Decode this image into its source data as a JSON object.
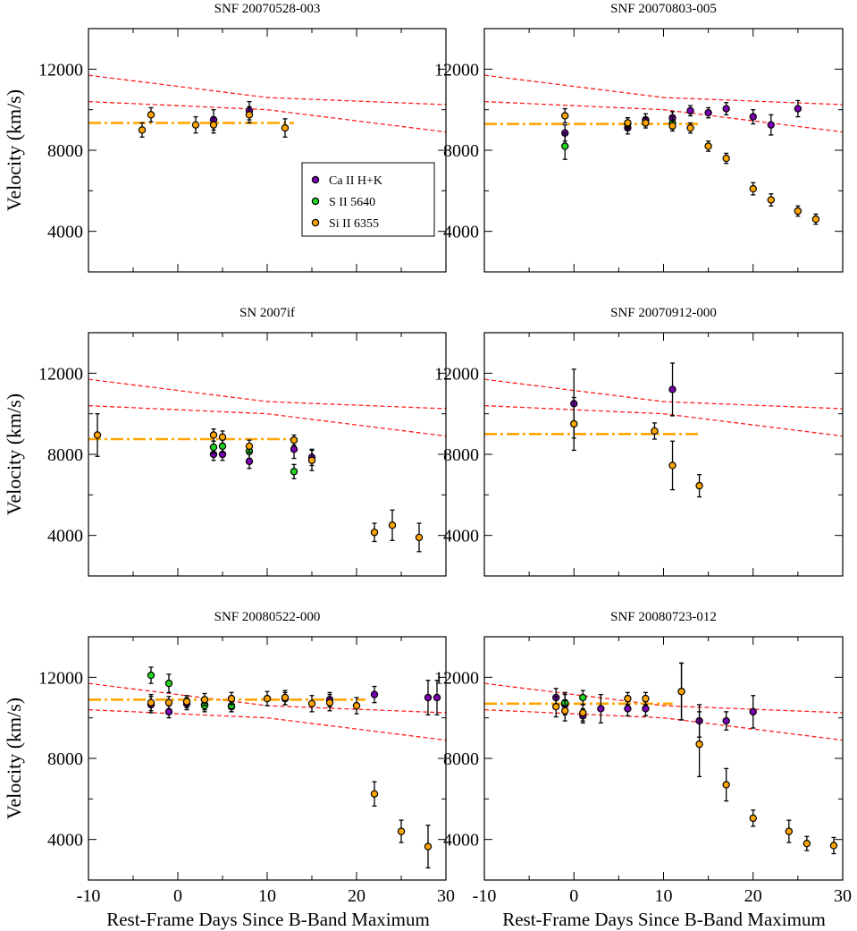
{
  "figure": {
    "xlabel": "Rest-Frame Days Since B-Band Maximum",
    "ylabel": "Velocity (km/s)",
    "xlim": [
      -10,
      30
    ],
    "ylim": [
      2000,
      14000
    ],
    "xticks": [
      -10,
      0,
      10,
      20,
      30
    ],
    "yticks": [
      4000,
      8000,
      12000
    ],
    "colors": {
      "ca": "#7b00b4",
      "s": "#22d422",
      "si": "#ffa500",
      "template": "#ff2020",
      "mean": "#ffa500"
    }
  },
  "legend": {
    "placement": "top-right of first panel",
    "entries": [
      {
        "key": "ca",
        "label": "Ca II H+K"
      },
      {
        "key": "s",
        "label": "S II 5640"
      },
      {
        "key": "si",
        "label": "Si II 6355"
      }
    ]
  },
  "template_lines": [
    {
      "name": "upper",
      "points": [
        [
          -10,
          11700
        ],
        [
          10,
          10600
        ],
        [
          30,
          10250
        ]
      ]
    },
    {
      "name": "lower",
      "points": [
        [
          -10,
          10400
        ],
        [
          10,
          10000
        ],
        [
          30,
          8900
        ]
      ]
    }
  ],
  "chart_data": [
    {
      "type": "scatter",
      "title": "SNF 20070528-003",
      "mean_velocity": {
        "value": 9350,
        "x_range": [
          -10,
          13
        ]
      },
      "series": [
        {
          "name": "Ca II H+K",
          "key": "ca",
          "points": [
            [
              4,
              9500,
              500
            ],
            [
              8,
              9950,
              450
            ]
          ]
        },
        {
          "name": "S II 5640",
          "key": "s",
          "points": []
        },
        {
          "name": "Si II 6355",
          "key": "si",
          "points": [
            [
              -4,
              9000,
              350
            ],
            [
              -3,
              9750,
              350
            ],
            [
              2,
              9250,
              400
            ],
            [
              4,
              9250,
              400
            ],
            [
              8,
              9750,
              400
            ],
            [
              12,
              9100,
              450
            ]
          ]
        }
      ]
    },
    {
      "type": "scatter",
      "title": "SNF 20070803-005",
      "mean_velocity": {
        "value": 9300,
        "x_range": [
          -10,
          14
        ]
      },
      "series": [
        {
          "name": "Ca II H+K",
          "key": "ca",
          "points": [
            [
              -1,
              8850,
              400
            ],
            [
              6,
              9100,
              300
            ],
            [
              8,
              9500,
              300
            ],
            [
              11,
              9600,
              300
            ],
            [
              13,
              9950,
              250
            ],
            [
              15,
              9850,
              250
            ],
            [
              17,
              10050,
              300
            ],
            [
              20,
              9650,
              350
            ],
            [
              22,
              9250,
              500
            ],
            [
              25,
              10050,
              400
            ]
          ]
        },
        {
          "name": "S II 5640",
          "key": "s",
          "points": [
            [
              -1,
              8200,
              650
            ],
            [
              6,
              9300,
              300
            ],
            [
              11,
              9350,
              300
            ]
          ]
        },
        {
          "name": "Si II 6355",
          "key": "si",
          "points": [
            [
              -1,
              9700,
              350
            ],
            [
              6,
              9350,
              250
            ],
            [
              8,
              9350,
              250
            ],
            [
              11,
              9200,
              250
            ],
            [
              13,
              9100,
              250
            ],
            [
              15,
              8200,
              250
            ],
            [
              17,
              7600,
              250
            ],
            [
              20,
              6100,
              300
            ],
            [
              22,
              5550,
              300
            ],
            [
              25,
              5000,
              250
            ],
            [
              27,
              4600,
              250
            ]
          ]
        }
      ]
    },
    {
      "type": "scatter",
      "title": "SN 2007if",
      "mean_velocity": {
        "value": 8750,
        "x_range": [
          -10,
          13
        ]
      },
      "series": [
        {
          "name": "Ca II H+K",
          "key": "ca",
          "points": [
            [
              4,
              8000,
              300
            ],
            [
              5,
              8000,
              300
            ],
            [
              8,
              7650,
              350
            ],
            [
              13,
              8250,
              450
            ],
            [
              15,
              7850,
              400
            ]
          ]
        },
        {
          "name": "S II 5640",
          "key": "s",
          "points": [
            [
              4,
              8350,
              300
            ],
            [
              5,
              8400,
              300
            ],
            [
              8,
              8150,
              350
            ],
            [
              13,
              7150,
              350
            ]
          ]
        },
        {
          "name": "Si II 6355",
          "key": "si",
          "points": [
            [
              -9,
              8950,
              1050
            ],
            [
              4,
              8950,
              300
            ],
            [
              5,
              8850,
              300
            ],
            [
              8,
              8400,
              300
            ],
            [
              13,
              8700,
              250
            ],
            [
              15,
              7700,
              500
            ],
            [
              22,
              4150,
              450
            ],
            [
              24,
              4500,
              750
            ],
            [
              27,
              3900,
              700
            ]
          ]
        }
      ]
    },
    {
      "type": "scatter",
      "title": "SNF 20070912-000",
      "mean_velocity": {
        "value": 9000,
        "x_range": [
          -10,
          14
        ]
      },
      "series": [
        {
          "name": "Ca II H+K",
          "key": "ca",
          "points": [
            [
              0,
              10500,
              1700
            ],
            [
              11,
              11200,
              1300
            ]
          ]
        },
        {
          "name": "S II 5640",
          "key": "s",
          "points": []
        },
        {
          "name": "Si II 6355",
          "key": "si",
          "points": [
            [
              0,
              9500,
              1300
            ],
            [
              9,
              9150,
              400
            ],
            [
              11,
              7450,
              1200
            ],
            [
              14,
              6450,
              550
            ]
          ]
        }
      ]
    },
    {
      "type": "scatter",
      "title": "SNF 20080522-000",
      "mean_velocity": {
        "value": 10900,
        "x_range": [
          -10,
          21
        ]
      },
      "series": [
        {
          "name": "Ca II H+K",
          "key": "ca",
          "points": [
            [
              -3,
              10650,
              400
            ],
            [
              -1,
              10300,
              300
            ],
            [
              1,
              10700,
              300
            ],
            [
              3,
              10650,
              250
            ],
            [
              6,
              10550,
              250
            ],
            [
              12,
              10950,
              300
            ],
            [
              17,
              10900,
              350
            ],
            [
              22,
              11150,
              400
            ],
            [
              28,
              11000,
              850
            ],
            [
              29,
              11000,
              850
            ]
          ]
        },
        {
          "name": "S II 5640",
          "key": "s",
          "points": [
            [
              -3,
              12100,
              400
            ],
            [
              -1,
              11700,
              450
            ],
            [
              3,
              10600,
              300
            ],
            [
              6,
              10600,
              300
            ]
          ]
        },
        {
          "name": "Si II 6355",
          "key": "si",
          "points": [
            [
              -3,
              10750,
              400
            ],
            [
              -1,
              10750,
              300
            ],
            [
              1,
              10800,
              300
            ],
            [
              3,
              10900,
              300
            ],
            [
              6,
              10950,
              300
            ],
            [
              10,
              10950,
              350
            ],
            [
              12,
              11000,
              350
            ],
            [
              15,
              10700,
              400
            ],
            [
              17,
              10750,
              400
            ],
            [
              20,
              10600,
              400
            ],
            [
              22,
              6250,
              600
            ],
            [
              25,
              4400,
              550
            ],
            [
              28,
              3650,
              1050
            ]
          ]
        }
      ]
    },
    {
      "type": "scatter",
      "title": "SNF 20080723-012",
      "mean_velocity": {
        "value": 10700,
        "x_range": [
          -10,
          11
        ]
      },
      "series": [
        {
          "name": "Ca II H+K",
          "key": "ca",
          "points": [
            [
              -2,
              11000,
              450
            ],
            [
              -1,
              10650,
              500
            ],
            [
              1,
              10100,
              350
            ],
            [
              3,
              10450,
              700
            ],
            [
              6,
              10450,
              350
            ],
            [
              8,
              10450,
              350
            ],
            [
              12,
              11300,
              1400
            ],
            [
              14,
              9850,
              800
            ],
            [
              17,
              9850,
              450
            ],
            [
              20,
              10300,
              800
            ]
          ]
        },
        {
          "name": "S II 5640",
          "key": "s",
          "points": [
            [
              -1,
              10750,
              500
            ],
            [
              1,
              11000,
              350
            ]
          ]
        },
        {
          "name": "Si II 6355",
          "key": "si",
          "points": [
            [
              -2,
              10550,
              500
            ],
            [
              -1,
              10350,
              500
            ],
            [
              1,
              10250,
              400
            ],
            [
              6,
              10950,
              300
            ],
            [
              8,
              10950,
              300
            ],
            [
              12,
              11300,
              1400
            ],
            [
              14,
              8700,
              1600
            ],
            [
              17,
              6700,
              800
            ],
            [
              20,
              5050,
              400
            ],
            [
              24,
              4400,
              550
            ],
            [
              26,
              3800,
              350
            ],
            [
              29,
              3700,
              400
            ]
          ]
        }
      ]
    }
  ]
}
